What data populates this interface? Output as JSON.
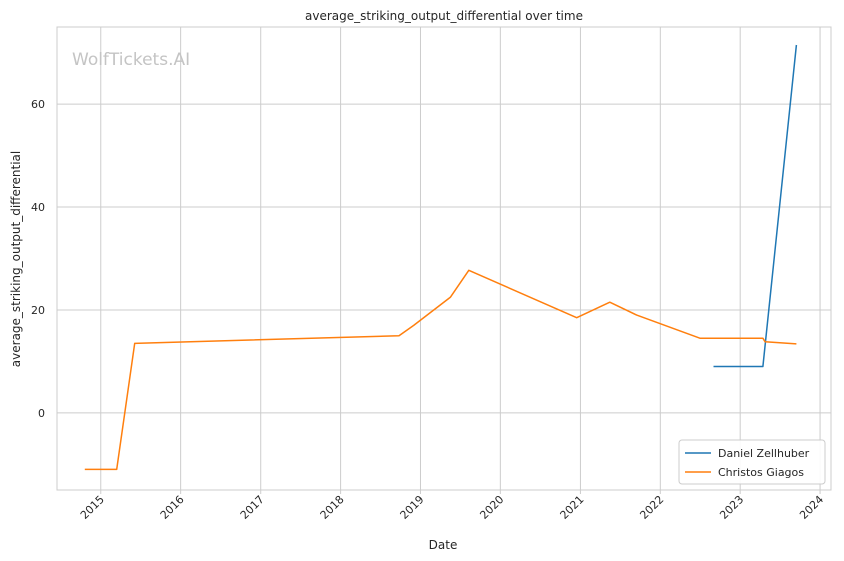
{
  "chart_data": {
    "type": "line",
    "title": "average_striking_output_differential over time",
    "xlabel": "Date",
    "ylabel": "average_striking_output_differential",
    "watermark": "WolfTickets.AI",
    "x_ticks": [
      "2015",
      "2016",
      "2017",
      "2018",
      "2019",
      "2020",
      "2021",
      "2022",
      "2023",
      "2024"
    ],
    "y_ticks": [
      0,
      20,
      40,
      60
    ],
    "xlim": [
      "2014-06-15",
      "2024-02-20"
    ],
    "ylim": [
      -15,
      75
    ],
    "grid": true,
    "legend_position": "bottom-right",
    "series": [
      {
        "name": "Daniel Zellhuber",
        "color": "#1f77b4",
        "points": [
          {
            "x": "2022-09-01",
            "y": 9
          },
          {
            "x": "2023-04-15",
            "y": 9
          },
          {
            "x": "2023-09-15",
            "y": 71.5
          }
        ]
      },
      {
        "name": "Christos Giagos",
        "color": "#ff7f0e",
        "points": [
          {
            "x": "2014-10-20",
            "y": -11
          },
          {
            "x": "2015-03-15",
            "y": -11
          },
          {
            "x": "2015-06-05",
            "y": 13.5
          },
          {
            "x": "2018-09-25",
            "y": 15
          },
          {
            "x": "2018-12-01",
            "y": 17
          },
          {
            "x": "2019-05-18",
            "y": 22.5
          },
          {
            "x": "2019-08-10",
            "y": 27.7
          },
          {
            "x": "2020-12-15",
            "y": 18.5
          },
          {
            "x": "2021-05-15",
            "y": 21.5
          },
          {
            "x": "2021-09-15",
            "y": 19
          },
          {
            "x": "2022-07-01",
            "y": 14.5
          },
          {
            "x": "2023-04-15",
            "y": 14.5
          },
          {
            "x": "2023-04-25",
            "y": 13.8
          },
          {
            "x": "2023-09-15",
            "y": 13.4
          }
        ]
      }
    ]
  }
}
